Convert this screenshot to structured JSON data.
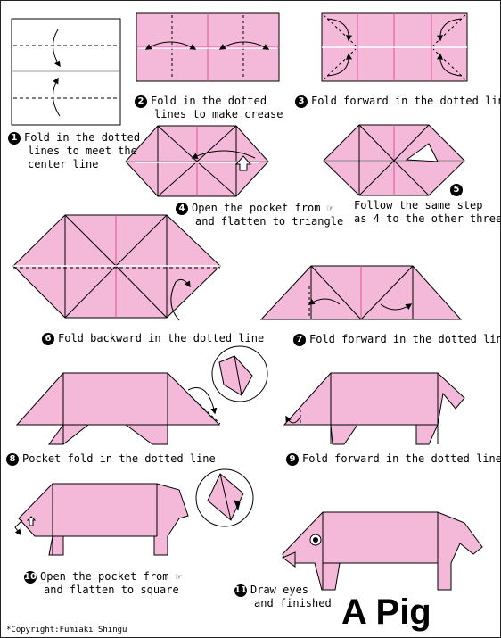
{
  "title": "A Pig",
  "copyright": "*Copyright:Fumiaki Shingu",
  "colors": {
    "paper": "#f4b9d9",
    "crease": "#e0509a",
    "line": "#000000"
  },
  "steps": [
    {
      "num": "1",
      "lines": [
        "Fold in the dotted",
        "lines to meet the",
        "center line"
      ]
    },
    {
      "num": "2",
      "lines": [
        "Fold in the dotted",
        "lines to make crease"
      ]
    },
    {
      "num": "3",
      "lines": [
        "Fold forward in the dotted line"
      ]
    },
    {
      "num": "4",
      "lines": [
        "Open the pocket from",
        "and flatten to triangle"
      ]
    },
    {
      "num": "5",
      "lines": [
        "Follow the same step",
        "as 4 to the other three"
      ]
    },
    {
      "num": "6",
      "lines": [
        "Fold backward in the dotted line"
      ]
    },
    {
      "num": "7",
      "lines": [
        "Fold forward in the dotted line"
      ]
    },
    {
      "num": "8",
      "lines": [
        "Pocket fold in the dotted line"
      ]
    },
    {
      "num": "9",
      "lines": [
        "Fold forward in the dotted line"
      ]
    },
    {
      "num": "10",
      "lines": [
        "Open the pocket from",
        "and flatten to square"
      ]
    },
    {
      "num": "11",
      "lines": [
        "Draw eyes",
        "and finished"
      ]
    }
  ],
  "icons": [
    "pointer-hand-icon"
  ]
}
